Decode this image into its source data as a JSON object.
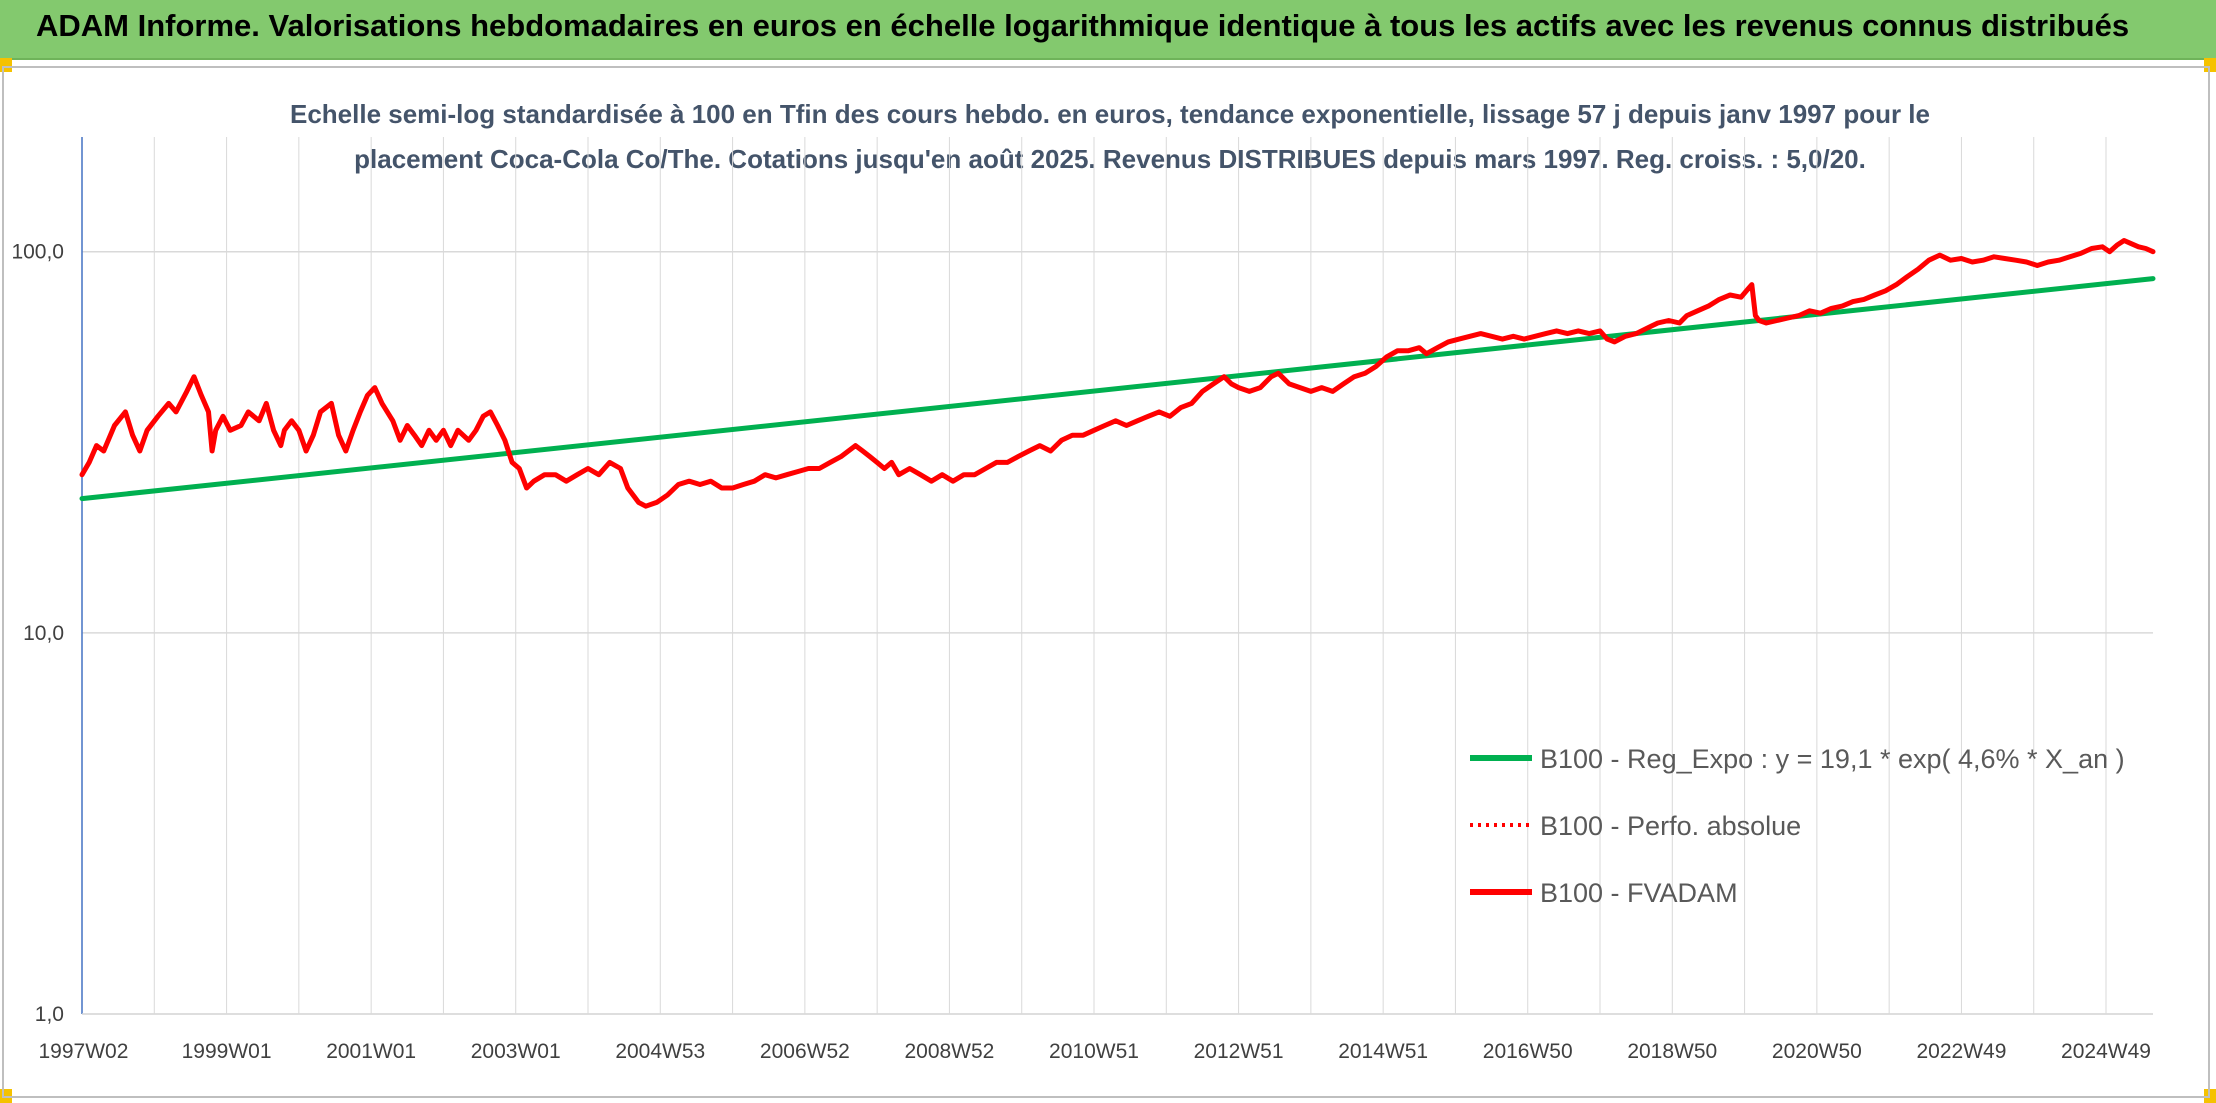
{
  "header": {
    "title": "ADAM Informe. Valorisations hebdomadaires en euros en échelle logarithmique identique à tous les actifs avec les revenus connus distribués"
  },
  "chart_data": {
    "type": "line",
    "title": "Echelle semi-log standardisée à 100 en Tfin des cours hebdo. en euros, tendance exponentielle, lissage 57 j depuis janv 1997 pour le placement Coca-Cola Co/The. Cotations jusqu'en août 2025. Revenus DISTRIBUES depuis mars 1997. Reg. croiss. : 5,0/20.",
    "title_lines": [
      "Echelle semi-log standardisée à 100 en Tfin des cours hebdo. en euros, tendance exponentielle, lissage 57 j depuis janv 1997 pour le",
      "placement Coca-Cola Co/The. Cotations jusqu'en août 2025. Revenus DISTRIBUES depuis mars 1997. Reg. croiss. : 5,0/20."
    ],
    "y_scale": "log",
    "ylim": [
      1,
      200
    ],
    "y_ticks": [
      1,
      10,
      100
    ],
    "y_tick_labels": [
      "1,0",
      "10,0",
      "100,0"
    ],
    "xlim": [
      1997.0,
      2025.65
    ],
    "x_ticks": [
      {
        "label": "1997W02",
        "x": 1997.02
      },
      {
        "label": "1999W01",
        "x": 1999.0
      },
      {
        "label": "2001W01",
        "x": 2001.0
      },
      {
        "label": "2003W01",
        "x": 2003.0
      },
      {
        "label": "2004W53",
        "x": 2005.0
      },
      {
        "label": "2006W52",
        "x": 2007.0
      },
      {
        "label": "2008W52",
        "x": 2009.0
      },
      {
        "label": "2010W51",
        "x": 2011.0
      },
      {
        "label": "2012W51",
        "x": 2013.0
      },
      {
        "label": "2014W51",
        "x": 2015.0
      },
      {
        "label": "2016W50",
        "x": 2017.0
      },
      {
        "label": "2018W50",
        "x": 2019.0
      },
      {
        "label": "2020W50",
        "x": 2021.0
      },
      {
        "label": "2022W49",
        "x": 2023.0
      },
      {
        "label": "2024W49",
        "x": 2025.0
      }
    ],
    "grid": "vertical-and-horizontal",
    "legend_position": "bottom-right",
    "series": [
      {
        "name": "B100 - Reg_Expo : y = 19,1 * exp( 4,6% *  X_an )",
        "color": "#00b050",
        "style": "solid",
        "points": [
          [
            1997.0,
            22.5
          ],
          [
            2025.65,
            85.0
          ]
        ]
      },
      {
        "name": "B100 - Perfo. absolue",
        "color": "#ff0000",
        "style": "dotted",
        "points": []
      },
      {
        "name": "B100 - FVADAM",
        "color": "#ff0000",
        "style": "solid",
        "points": [
          [
            1997.0,
            26
          ],
          [
            1997.1,
            28
          ],
          [
            1997.2,
            31
          ],
          [
            1997.3,
            30
          ],
          [
            1997.45,
            35
          ],
          [
            1997.6,
            38
          ],
          [
            1997.7,
            33
          ],
          [
            1997.8,
            30
          ],
          [
            1997.9,
            34
          ],
          [
            1998.05,
            37
          ],
          [
            1998.2,
            40
          ],
          [
            1998.3,
            38
          ],
          [
            1998.45,
            43
          ],
          [
            1998.55,
            47
          ],
          [
            1998.65,
            42
          ],
          [
            1998.75,
            38
          ],
          [
            1998.8,
            30
          ],
          [
            1998.85,
            34
          ],
          [
            1998.95,
            37
          ],
          [
            1999.05,
            34
          ],
          [
            1999.2,
            35
          ],
          [
            1999.3,
            38
          ],
          [
            1999.45,
            36
          ],
          [
            1999.55,
            40
          ],
          [
            1999.65,
            34
          ],
          [
            1999.75,
            31
          ],
          [
            1999.8,
            34
          ],
          [
            1999.9,
            36
          ],
          [
            2000.0,
            34
          ],
          [
            2000.1,
            30
          ],
          [
            2000.2,
            33
          ],
          [
            2000.3,
            38
          ],
          [
            2000.45,
            40
          ],
          [
            2000.55,
            33
          ],
          [
            2000.65,
            30
          ],
          [
            2000.75,
            34
          ],
          [
            2000.85,
            38
          ],
          [
            2000.95,
            42
          ],
          [
            2001.05,
            44
          ],
          [
            2001.15,
            40
          ],
          [
            2001.3,
            36
          ],
          [
            2001.4,
            32
          ],
          [
            2001.5,
            35
          ],
          [
            2001.6,
            33
          ],
          [
            2001.7,
            31
          ],
          [
            2001.8,
            34
          ],
          [
            2001.9,
            32
          ],
          [
            2002.0,
            34
          ],
          [
            2002.1,
            31
          ],
          [
            2002.2,
            34
          ],
          [
            2002.35,
            32
          ],
          [
            2002.45,
            34
          ],
          [
            2002.55,
            37
          ],
          [
            2002.65,
            38
          ],
          [
            2002.75,
            35
          ],
          [
            2002.85,
            32
          ],
          [
            2002.95,
            28
          ],
          [
            2003.05,
            27
          ],
          [
            2003.15,
            24
          ],
          [
            2003.25,
            25
          ],
          [
            2003.4,
            26
          ],
          [
            2003.55,
            26
          ],
          [
            2003.7,
            25
          ],
          [
            2003.85,
            26
          ],
          [
            2004.0,
            27
          ],
          [
            2004.15,
            26
          ],
          [
            2004.3,
            28
          ],
          [
            2004.45,
            27
          ],
          [
            2004.55,
            24
          ],
          [
            2004.7,
            22
          ],
          [
            2004.8,
            21.5
          ],
          [
            2004.95,
            22
          ],
          [
            2005.1,
            23
          ],
          [
            2005.25,
            24.5
          ],
          [
            2005.4,
            25
          ],
          [
            2005.55,
            24.5
          ],
          [
            2005.7,
            25
          ],
          [
            2005.85,
            24
          ],
          [
            2006.0,
            24
          ],
          [
            2006.15,
            24.5
          ],
          [
            2006.3,
            25
          ],
          [
            2006.45,
            26
          ],
          [
            2006.6,
            25.5
          ],
          [
            2006.75,
            26
          ],
          [
            2006.9,
            26.5
          ],
          [
            2007.05,
            27
          ],
          [
            2007.2,
            27
          ],
          [
            2007.35,
            28
          ],
          [
            2007.5,
            29
          ],
          [
            2007.7,
            31
          ],
          [
            2007.8,
            30
          ],
          [
            2007.9,
            29
          ],
          [
            2008.0,
            28
          ],
          [
            2008.1,
            27
          ],
          [
            2008.2,
            28
          ],
          [
            2008.3,
            26
          ],
          [
            2008.45,
            27
          ],
          [
            2008.6,
            26
          ],
          [
            2008.75,
            25
          ],
          [
            2008.9,
            26
          ],
          [
            2009.05,
            25
          ],
          [
            2009.2,
            26
          ],
          [
            2009.35,
            26
          ],
          [
            2009.5,
            27
          ],
          [
            2009.65,
            28
          ],
          [
            2009.8,
            28
          ],
          [
            2009.95,
            29
          ],
          [
            2010.1,
            30
          ],
          [
            2010.25,
            31
          ],
          [
            2010.4,
            30
          ],
          [
            2010.55,
            32
          ],
          [
            2010.7,
            33
          ],
          [
            2010.85,
            33
          ],
          [
            2011.0,
            34
          ],
          [
            2011.15,
            35
          ],
          [
            2011.3,
            36
          ],
          [
            2011.45,
            35
          ],
          [
            2011.6,
            36
          ],
          [
            2011.75,
            37
          ],
          [
            2011.9,
            38
          ],
          [
            2012.05,
            37
          ],
          [
            2012.2,
            39
          ],
          [
            2012.35,
            40
          ],
          [
            2012.5,
            43
          ],
          [
            2012.65,
            45
          ],
          [
            2012.8,
            47
          ],
          [
            2012.9,
            45
          ],
          [
            2013.0,
            44
          ],
          [
            2013.15,
            43
          ],
          [
            2013.3,
            44
          ],
          [
            2013.45,
            47
          ],
          [
            2013.55,
            48
          ],
          [
            2013.7,
            45
          ],
          [
            2013.85,
            44
          ],
          [
            2014.0,
            43
          ],
          [
            2014.15,
            44
          ],
          [
            2014.3,
            43
          ],
          [
            2014.45,
            45
          ],
          [
            2014.6,
            47
          ],
          [
            2014.75,
            48
          ],
          [
            2014.9,
            50
          ],
          [
            2015.05,
            53
          ],
          [
            2015.2,
            55
          ],
          [
            2015.35,
            55
          ],
          [
            2015.5,
            56
          ],
          [
            2015.6,
            54
          ],
          [
            2015.75,
            56
          ],
          [
            2015.9,
            58
          ],
          [
            2016.05,
            59
          ],
          [
            2016.2,
            60
          ],
          [
            2016.35,
            61
          ],
          [
            2016.5,
            60
          ],
          [
            2016.65,
            59
          ],
          [
            2016.8,
            60
          ],
          [
            2016.95,
            59
          ],
          [
            2017.1,
            60
          ],
          [
            2017.25,
            61
          ],
          [
            2017.4,
            62
          ],
          [
            2017.55,
            61
          ],
          [
            2017.7,
            62
          ],
          [
            2017.85,
            61
          ],
          [
            2018.0,
            62
          ],
          [
            2018.1,
            59
          ],
          [
            2018.2,
            58
          ],
          [
            2018.35,
            60
          ],
          [
            2018.5,
            61
          ],
          [
            2018.65,
            63
          ],
          [
            2018.8,
            65
          ],
          [
            2018.95,
            66
          ],
          [
            2019.1,
            65
          ],
          [
            2019.2,
            68
          ],
          [
            2019.35,
            70
          ],
          [
            2019.5,
            72
          ],
          [
            2019.65,
            75
          ],
          [
            2019.8,
            77
          ],
          [
            2019.95,
            76
          ],
          [
            2020.05,
            80
          ],
          [
            2020.1,
            82
          ],
          [
            2020.15,
            68
          ],
          [
            2020.2,
            66
          ],
          [
            2020.3,
            65
          ],
          [
            2020.45,
            66
          ],
          [
            2020.6,
            67
          ],
          [
            2020.75,
            68
          ],
          [
            2020.9,
            70
          ],
          [
            2021.05,
            69
          ],
          [
            2021.2,
            71
          ],
          [
            2021.35,
            72
          ],
          [
            2021.5,
            74
          ],
          [
            2021.65,
            75
          ],
          [
            2021.8,
            77
          ],
          [
            2021.95,
            79
          ],
          [
            2022.1,
            82
          ],
          [
            2022.25,
            86
          ],
          [
            2022.4,
            90
          ],
          [
            2022.55,
            95
          ],
          [
            2022.7,
            98
          ],
          [
            2022.85,
            95
          ],
          [
            2023.0,
            96
          ],
          [
            2023.15,
            94
          ],
          [
            2023.3,
            95
          ],
          [
            2023.45,
            97
          ],
          [
            2023.6,
            96
          ],
          [
            2023.75,
            95
          ],
          [
            2023.9,
            94
          ],
          [
            2024.05,
            92
          ],
          [
            2024.2,
            94
          ],
          [
            2024.35,
            95
          ],
          [
            2024.5,
            97
          ],
          [
            2024.65,
            99
          ],
          [
            2024.8,
            102
          ],
          [
            2024.95,
            103
          ],
          [
            2025.05,
            100
          ],
          [
            2025.15,
            104
          ],
          [
            2025.25,
            107
          ],
          [
            2025.35,
            105
          ],
          [
            2025.45,
            103
          ],
          [
            2025.55,
            102
          ],
          [
            2025.65,
            100
          ]
        ]
      }
    ]
  }
}
